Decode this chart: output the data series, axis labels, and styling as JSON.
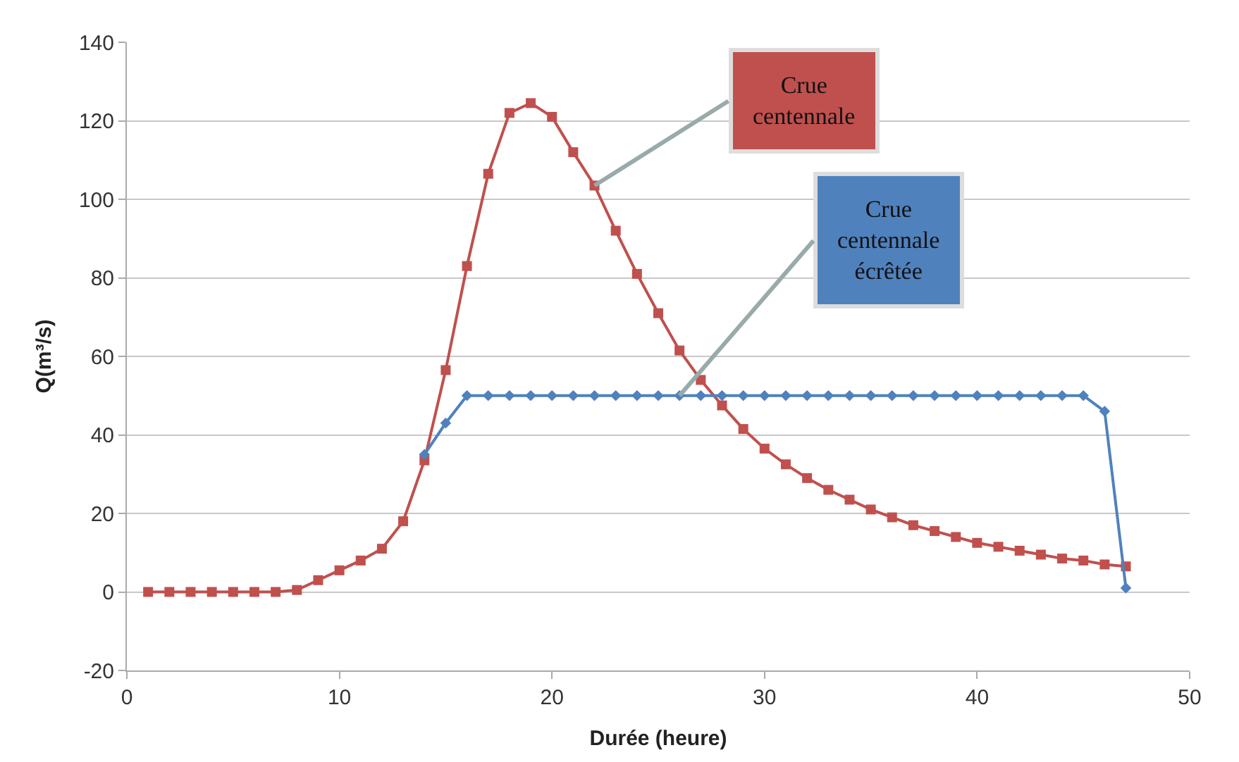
{
  "chart_data": {
    "type": "line",
    "xlabel": "Durée (heure)",
    "ylabel": "Q(m³/s)",
    "xlim": [
      0,
      50
    ],
    "xticks": [
      0,
      10,
      20,
      30,
      40,
      50
    ],
    "ylim": [
      -20,
      140
    ],
    "yticks": [
      -20,
      0,
      20,
      40,
      60,
      80,
      100,
      120,
      140
    ],
    "grid": "y",
    "series": [
      {
        "color": "#c0504d",
        "marker": "square",
        "x": [
          1,
          2,
          3,
          4,
          5,
          6,
          7,
          8,
          9,
          10,
          11,
          12,
          13,
          14,
          15,
          16,
          17,
          18,
          19,
          20,
          21,
          22,
          23,
          24,
          25,
          26,
          27,
          28,
          29,
          30,
          31,
          32,
          33,
          34,
          35,
          36,
          37,
          38,
          39,
          40,
          41,
          42,
          43,
          44,
          45,
          46,
          47
        ],
        "values": [
          0,
          0,
          0,
          0,
          0,
          0,
          0,
          0.5,
          3,
          5.5,
          8,
          11,
          18,
          33.5,
          56.5,
          83,
          106.5,
          122,
          124.5,
          121,
          112,
          103.5,
          92,
          81,
          71,
          61.5,
          54,
          47.5,
          41.5,
          36.5,
          32.5,
          29,
          26,
          23.5,
          21,
          19,
          17,
          15.5,
          14,
          12.5,
          11.5,
          10.5,
          9.5,
          8.5,
          8,
          7,
          6.5
        ]
      },
      {
        "color": "#4f81bd",
        "marker": "diamond",
        "x": [
          14,
          15,
          16,
          17,
          18,
          19,
          20,
          21,
          22,
          23,
          24,
          25,
          26,
          27,
          28,
          29,
          30,
          31,
          32,
          33,
          34,
          35,
          36,
          37,
          38,
          39,
          40,
          41,
          42,
          43,
          44,
          45,
          46,
          47
        ],
        "values": [
          35,
          43,
          50,
          50,
          50,
          50,
          50,
          50,
          50,
          50,
          50,
          50,
          50,
          50,
          50,
          50,
          50,
          50,
          50,
          50,
          50,
          50,
          50,
          50,
          50,
          50,
          50,
          50,
          50,
          50,
          50,
          50,
          46,
          1
        ]
      }
    ],
    "annotations": [
      {
        "text": "Crue\ncentennale",
        "x": 22,
        "y": 103.5
      },
      {
        "text": "Crue\ncentennale\nécrêtée",
        "x": 26,
        "y": 50
      }
    ]
  }
}
